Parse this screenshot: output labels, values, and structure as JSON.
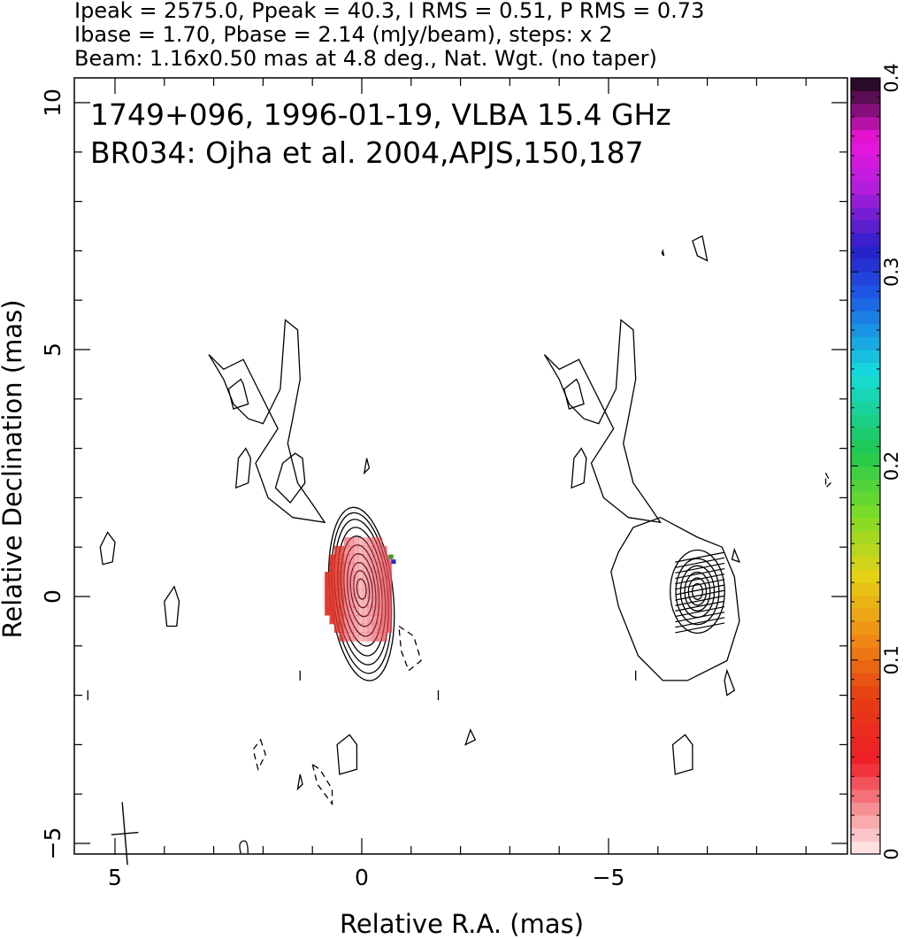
{
  "header": {
    "line1": "Ipeak = 2575.0, Ppeak = 40.3, I RMS = 0.51, P RMS = 0.73",
    "line2": "Ibase = 1.70, Pbase = 2.14 (mJy/beam), steps: x 2",
    "line3": "Beam: 1.16x0.50 mas at 4.8 deg., Nat. Wgt. (no taper)"
  },
  "annotation": {
    "line1": "1749+096, 1996-01-19, VLBA 15.4 GHz",
    "line2": "BR034: Ojha et al. 2004,APJS,150,187"
  },
  "chart_data": {
    "type": "heatmap",
    "title": "",
    "xlabel": "Relative R.A. (mas)",
    "ylabel": "Relative Declination (mas)",
    "xlim": [
      5.8,
      -10
    ],
    "ylim": [
      -5.3,
      10.5
    ],
    "x_ticks": [
      5,
      0,
      -5
    ],
    "x_tick_labels": [
      "5",
      "0",
      "−5"
    ],
    "y_ticks": [
      -5,
      0,
      5,
      10
    ],
    "y_tick_labels": [
      "−5",
      "0",
      "5",
      "10"
    ],
    "colorbar": {
      "range": [
        0,
        0.4
      ],
      "ticks": [
        0,
        0.1,
        0.2,
        0.3,
        0.4
      ],
      "tick_labels": [
        "0",
        "0.1",
        "0.2",
        "0.3",
        "0.4"
      ]
    },
    "panels": [
      {
        "name": "left",
        "content": "total intensity contours with fractional polarization color",
        "core_center": [
          0.0,
          0.1
        ]
      },
      {
        "name": "right",
        "content": "total intensity contours with EVPA sticks",
        "x_offset": -6.8
      }
    ],
    "core_contours": [
      {
        "rx": 0.82,
        "ry": 2.05,
        "cx": 0.0,
        "cy": 0.0
      },
      {
        "rx": 0.75,
        "ry": 1.9,
        "cx": 0.0,
        "cy": 0.02
      },
      {
        "rx": 0.68,
        "ry": 1.72,
        "cx": 0.0,
        "cy": 0.04
      },
      {
        "rx": 0.6,
        "ry": 1.52,
        "cx": 0.0,
        "cy": 0.05
      },
      {
        "rx": 0.52,
        "ry": 1.3,
        "cx": 0.0,
        "cy": 0.06
      },
      {
        "rx": 0.44,
        "ry": 1.08,
        "cx": 0.0,
        "cy": 0.07
      },
      {
        "rx": 0.36,
        "ry": 0.86,
        "cx": 0.0,
        "cy": 0.08
      },
      {
        "rx": 0.28,
        "ry": 0.64,
        "cx": 0.0,
        "cy": 0.09
      },
      {
        "rx": 0.2,
        "ry": 0.44,
        "cx": 0.0,
        "cy": 0.1
      },
      {
        "rx": 0.12,
        "ry": 0.24,
        "cx": 0.0,
        "cy": 0.1
      }
    ],
    "polarization_patch": {
      "x_range": [
        0.75,
        -0.6
      ],
      "y_range": [
        -0.9,
        1.2
      ],
      "fraction_min": 0.04,
      "fraction_max": 0.08
    },
    "beam": {
      "major_mas": 1.16,
      "minor_mas": 0.5,
      "pa_deg": 4.8,
      "center": [
        4.8,
        -4.8
      ]
    },
    "colors": {
      "contour": "#000000",
      "polarization": "#e0404a"
    }
  }
}
